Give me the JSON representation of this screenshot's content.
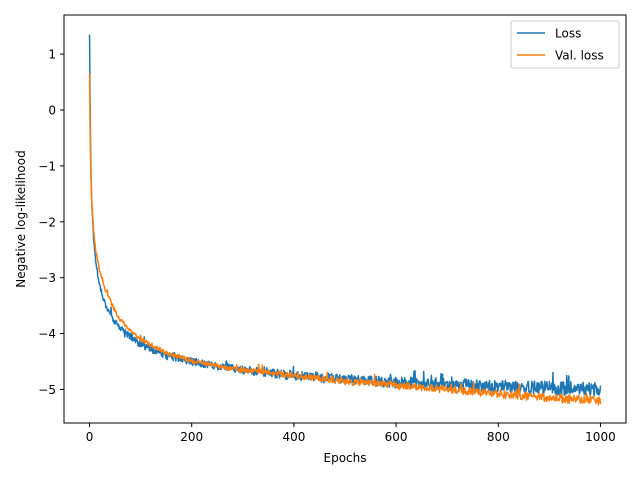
{
  "chart_data": {
    "type": "line",
    "title": "",
    "xlabel": "Epochs",
    "ylabel": "Negative log-likelihood",
    "xlim": [
      -50,
      1050
    ],
    "ylim": [
      -5.6,
      1.7
    ],
    "xticks": [
      0,
      200,
      400,
      600,
      800,
      1000
    ],
    "yticks": [
      1,
      0,
      -1,
      -2,
      -3,
      -4,
      -5
    ],
    "ytick_labels": [
      "1",
      "0",
      "−1",
      "−2",
      "−3",
      "−4",
      "−5"
    ],
    "grid": false,
    "legend": {
      "placement": "top-right"
    },
    "series": [
      {
        "name": "Loss",
        "color": "#1f77b4",
        "noise": 0.05,
        "x": [
          0,
          1,
          2,
          3,
          5,
          8,
          12,
          20,
          30,
          40,
          50,
          60,
          80,
          100,
          150,
          200,
          250,
          300,
          400,
          500,
          600,
          700,
          800,
          900,
          1000
        ],
        "y": [
          1.35,
          0.2,
          -0.6,
          -1.2,
          -1.8,
          -2.3,
          -2.7,
          -3.15,
          -3.45,
          -3.65,
          -3.8,
          -3.9,
          -4.05,
          -4.2,
          -4.4,
          -4.5,
          -4.58,
          -4.65,
          -4.75,
          -4.82,
          -4.88,
          -4.92,
          -4.95,
          -4.98,
          -5.0
        ]
      },
      {
        "name": "Val. loss",
        "color": "#ff7f0e",
        "noise": 0.03,
        "x": [
          0,
          1,
          2,
          3,
          5,
          8,
          12,
          20,
          30,
          40,
          50,
          60,
          80,
          100,
          150,
          200,
          250,
          300,
          400,
          500,
          600,
          700,
          800,
          900,
          1000
        ],
        "y": [
          0.65,
          -0.3,
          -0.9,
          -1.3,
          -1.75,
          -2.15,
          -2.5,
          -2.9,
          -3.2,
          -3.4,
          -3.6,
          -3.75,
          -3.95,
          -4.1,
          -4.35,
          -4.48,
          -4.58,
          -4.65,
          -4.75,
          -4.85,
          -4.92,
          -5.0,
          -5.08,
          -5.15,
          -5.2
        ]
      }
    ]
  }
}
